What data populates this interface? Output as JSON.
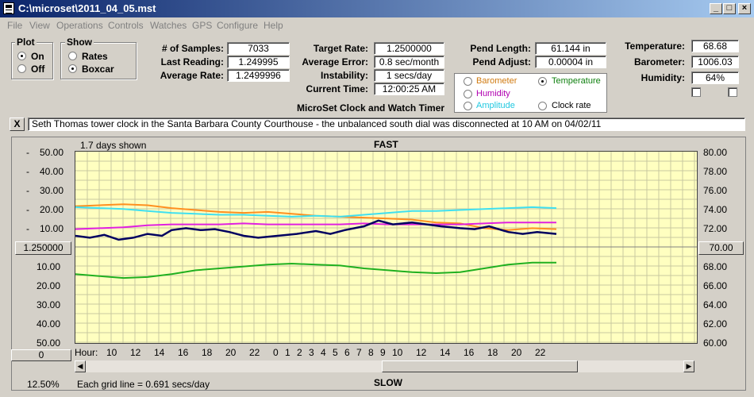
{
  "window": {
    "title": "C:\\microset\\2011_04_05.mst",
    "min": "_",
    "max": "□",
    "close": "×"
  },
  "menu": [
    "File",
    "View",
    "Operations",
    "Controls",
    "Watches",
    "GPS",
    "Configure",
    "Help"
  ],
  "plot_group": {
    "title": "Plot",
    "on": "On",
    "off": "Off"
  },
  "show_group": {
    "title": "Show",
    "rates": "Rates",
    "boxcar": "Boxcar"
  },
  "stats": {
    "samples_label": "# of Samples:",
    "samples": "7033",
    "last_label": "Last Reading:",
    "last": "1.249995",
    "avg_label": "Average Rate:",
    "avg": "1.2499996"
  },
  "rates": {
    "target_label": "Target Rate:",
    "target": "1.2500000",
    "error_label": "Average Error:",
    "error": "0.8 sec/month",
    "instab_label": "Instability:",
    "instab": "1 secs/day",
    "time_label": "Current Time:",
    "time": "12:00:25 AM"
  },
  "app_caption": "MicroSet Clock and Watch Timer",
  "pend": {
    "length_label": "Pend Length:",
    "length": "61.144 in",
    "adjust_label": "Pend Adjust:",
    "adjust": "0.00004 in"
  },
  "env": {
    "temp_label": "Temperature:",
    "temp": "68.68",
    "baro_label": "Barometer:",
    "baro": "1006.03",
    "hum_label": "Humidity:",
    "hum": "64%"
  },
  "sensor_options": {
    "barometer": "Barometer",
    "humidity": "Humidity",
    "amplitude": "Amplitude",
    "temperature": "Temperature",
    "clock_rate": "Clock rate",
    "colors": {
      "barometer": "#d07a10",
      "humidity": "#b000b0",
      "amplitude": "#20c8e0",
      "temperature": "#108010"
    }
  },
  "notes": {
    "close": "X",
    "text": "Seth Thomas tower clock in the Santa Barbara County Courthouse - the unbalanced south dial was disconnected at 10 AM on 04/02/11"
  },
  "plot": {
    "days_shown": "1.7 days shown",
    "fast": "FAST",
    "slow": "SLOW",
    "left_center_button": "1.250000",
    "right_center_button": "70.00",
    "zero_button": "0",
    "hour_label": "Hour:",
    "zoom": "12.50%",
    "grid_note": "Each grid line = 0.691 secs/day",
    "left_axis_top": [
      "50.00",
      "40.00",
      "30.00",
      "20.00",
      "10.00"
    ],
    "left_axis_bottom": [
      "10.00",
      "20.00",
      "30.00",
      "40.00",
      "50.00"
    ],
    "right_axis": [
      "80.00",
      "78.00",
      "76.00",
      "74.00",
      "72.00",
      "70.00",
      "68.00",
      "66.00",
      "64.00",
      "62.00",
      "60.00"
    ],
    "hours": [
      "10",
      "12",
      "14",
      "16",
      "18",
      "20",
      "22",
      "0",
      "1",
      "2",
      "3",
      "4",
      "5",
      "6",
      "7",
      "8",
      "9",
      "10",
      "12",
      "14",
      "16",
      "18",
      "20",
      "22"
    ]
  },
  "chart_data": {
    "type": "line",
    "xlabel": "Hour:",
    "ylim_left": [
      -50,
      50
    ],
    "ylim_right": [
      60,
      80
    ],
    "grid": true,
    "series": [
      {
        "color": "#ff9020",
        "points": [
          [
            0,
            21.5
          ],
          [
            0.05,
            22
          ],
          [
            0.1,
            22.5
          ],
          [
            0.15,
            22
          ],
          [
            0.2,
            20.5
          ],
          [
            0.25,
            19.5
          ],
          [
            0.3,
            18.5
          ],
          [
            0.35,
            18
          ],
          [
            0.4,
            18.5
          ],
          [
            0.45,
            17.5
          ],
          [
            0.5,
            16.5
          ],
          [
            0.55,
            16
          ],
          [
            0.6,
            15.5
          ],
          [
            0.65,
            15
          ],
          [
            0.7,
            14.5
          ],
          [
            0.75,
            13
          ],
          [
            0.8,
            12.5
          ],
          [
            0.85,
            10
          ],
          [
            0.9,
            9
          ],
          [
            0.95,
            10
          ],
          [
            1.0,
            9.5
          ]
        ]
      },
      {
        "color": "#40e0f0",
        "points": [
          [
            0,
            21
          ],
          [
            0.05,
            20.5
          ],
          [
            0.1,
            20
          ],
          [
            0.15,
            19
          ],
          [
            0.2,
            18
          ],
          [
            0.25,
            17.5
          ],
          [
            0.3,
            17
          ],
          [
            0.35,
            17
          ],
          [
            0.4,
            16.5
          ],
          [
            0.45,
            16
          ],
          [
            0.5,
            16.5
          ],
          [
            0.55,
            16
          ],
          [
            0.6,
            17
          ],
          [
            0.65,
            18
          ],
          [
            0.7,
            19
          ],
          [
            0.75,
            19
          ],
          [
            0.8,
            19.5
          ],
          [
            0.85,
            20
          ],
          [
            0.9,
            20.5
          ],
          [
            0.95,
            21
          ],
          [
            1.0,
            20.5
          ]
        ]
      },
      {
        "color": "#e020e0",
        "points": [
          [
            0,
            9.5
          ],
          [
            0.05,
            10
          ],
          [
            0.1,
            10.5
          ],
          [
            0.15,
            11.5
          ],
          [
            0.2,
            12
          ],
          [
            0.25,
            12
          ],
          [
            0.3,
            12
          ],
          [
            0.35,
            12.5
          ],
          [
            0.4,
            12
          ],
          [
            0.45,
            12
          ],
          [
            0.5,
            12
          ],
          [
            0.55,
            12
          ],
          [
            0.6,
            12.5
          ],
          [
            0.65,
            12
          ],
          [
            0.7,
            12
          ],
          [
            0.75,
            12
          ],
          [
            0.8,
            12
          ],
          [
            0.85,
            12.5
          ],
          [
            0.9,
            13
          ],
          [
            0.95,
            13
          ],
          [
            1.0,
            13
          ]
        ]
      },
      {
        "color": "#000060",
        "points": [
          [
            0,
            6
          ],
          [
            0.03,
            5
          ],
          [
            0.06,
            6.5
          ],
          [
            0.09,
            4
          ],
          [
            0.12,
            5
          ],
          [
            0.15,
            7
          ],
          [
            0.18,
            6
          ],
          [
            0.2,
            9
          ],
          [
            0.23,
            10
          ],
          [
            0.26,
            9
          ],
          [
            0.29,
            9.5
          ],
          [
            0.32,
            8
          ],
          [
            0.35,
            6
          ],
          [
            0.38,
            5
          ],
          [
            0.42,
            6
          ],
          [
            0.46,
            7
          ],
          [
            0.5,
            8.5
          ],
          [
            0.53,
            7
          ],
          [
            0.56,
            9
          ],
          [
            0.6,
            11
          ],
          [
            0.63,
            14
          ],
          [
            0.66,
            12
          ],
          [
            0.7,
            13
          ],
          [
            0.73,
            12
          ],
          [
            0.76,
            11
          ],
          [
            0.8,
            10
          ],
          [
            0.83,
            9.5
          ],
          [
            0.86,
            11
          ],
          [
            0.9,
            8
          ],
          [
            0.93,
            7
          ],
          [
            0.96,
            8
          ],
          [
            1.0,
            7
          ]
        ]
      },
      {
        "color": "#20b020",
        "points": [
          [
            0,
            -14
          ],
          [
            0.05,
            -15
          ],
          [
            0.1,
            -16
          ],
          [
            0.15,
            -15.5
          ],
          [
            0.2,
            -14
          ],
          [
            0.25,
            -12
          ],
          [
            0.3,
            -11
          ],
          [
            0.35,
            -10
          ],
          [
            0.4,
            -9
          ],
          [
            0.45,
            -8.5
          ],
          [
            0.5,
            -9
          ],
          [
            0.55,
            -9.5
          ],
          [
            0.6,
            -11
          ],
          [
            0.65,
            -12
          ],
          [
            0.7,
            -13
          ],
          [
            0.75,
            -13.5
          ],
          [
            0.8,
            -13
          ],
          [
            0.85,
            -11
          ],
          [
            0.9,
            -9
          ],
          [
            0.95,
            -8
          ],
          [
            1.0,
            -8
          ]
        ]
      }
    ]
  }
}
